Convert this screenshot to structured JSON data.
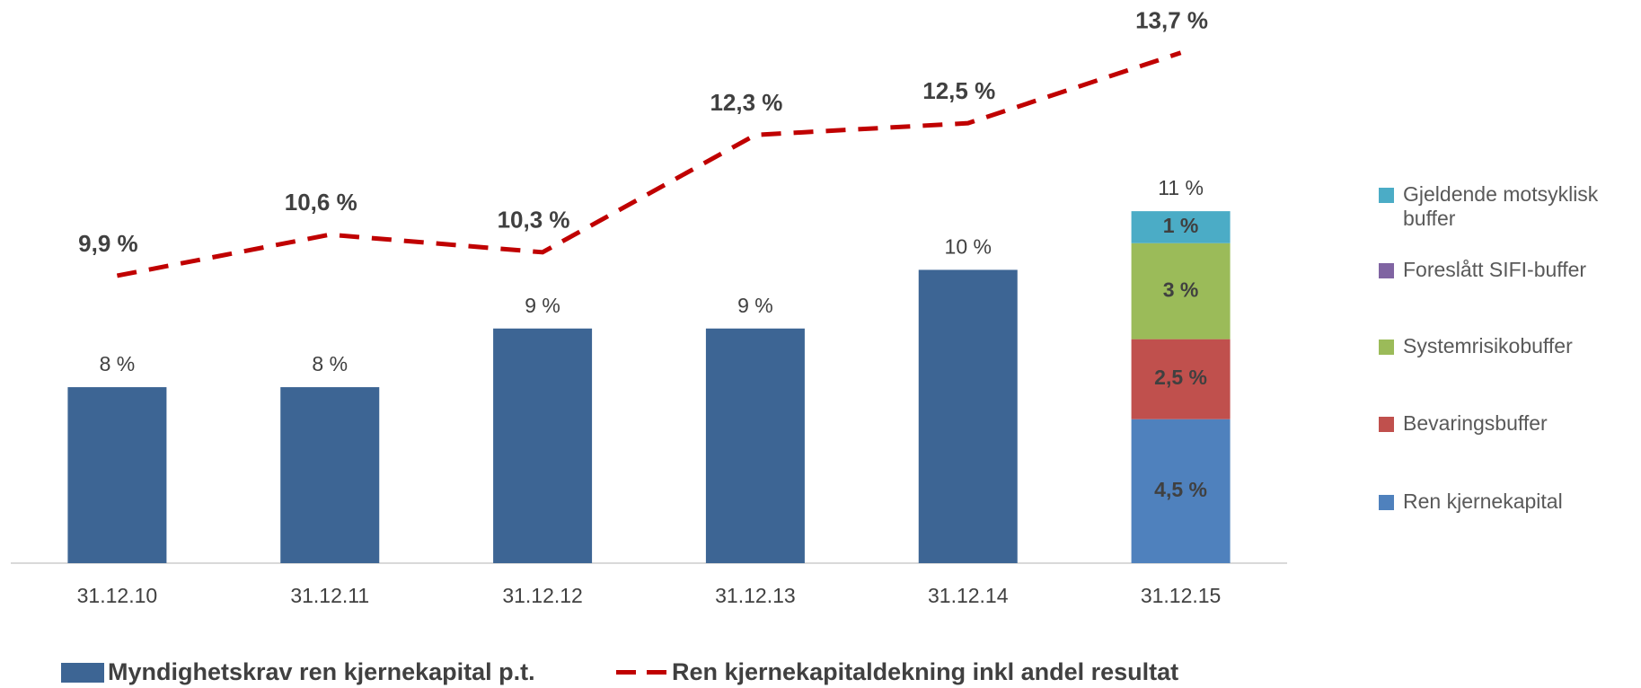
{
  "chart_data": {
    "type": "bar",
    "categories": [
      "31.12.10",
      "31.12.11",
      "31.12.12",
      "31.12.13",
      "31.12.14",
      "31.12.15"
    ],
    "ylim": [
      5,
      14.6
    ],
    "y2lim": [
      0,
      17.6
    ],
    "series": [
      {
        "name": "Myndighetskrav ren kjernekapital p.t.",
        "type": "bar",
        "color": "#3d6594",
        "values": [
          8,
          8,
          9,
          9,
          10,
          null
        ],
        "value_labels": [
          "8 %",
          "8 %",
          "9 %",
          "9 %",
          "10 %",
          null
        ]
      },
      {
        "name": "Ren kjernekapital",
        "type": "stacked",
        "axis": "y2",
        "color": "#4f81bd",
        "values": [
          null,
          null,
          null,
          null,
          null,
          4.5
        ],
        "value_labels": [
          null,
          null,
          null,
          null,
          null,
          "4,5 %"
        ]
      },
      {
        "name": "Bevaringsbuffer",
        "type": "stacked",
        "axis": "y2",
        "color": "#c0504d",
        "values": [
          null,
          null,
          null,
          null,
          null,
          2.5
        ],
        "value_labels": [
          null,
          null,
          null,
          null,
          null,
          "2,5 %"
        ]
      },
      {
        "name": "Systemrisikobuffer",
        "type": "stacked",
        "axis": "y2",
        "color": "#9bbb59",
        "values": [
          null,
          null,
          null,
          null,
          null,
          3
        ],
        "value_labels": [
          null,
          null,
          null,
          null,
          null,
          "3 %"
        ]
      },
      {
        "name": "Foreslått SIFI-buffer",
        "type": "stacked",
        "axis": "y2",
        "color": "#8064a2",
        "values": [
          null,
          null,
          null,
          null,
          null,
          0
        ]
      },
      {
        "name": "Gjeldende motsyklisk buffer",
        "type": "stacked",
        "axis": "y2",
        "color": "#4bacc6",
        "values": [
          null,
          null,
          null,
          null,
          null,
          1
        ],
        "value_labels": [
          null,
          null,
          null,
          null,
          null,
          "1 %"
        ]
      },
      {
        "name": "Ren kjernekapitaldekning inkl andel resultat",
        "type": "line",
        "color": "#c00000",
        "values": [
          9.9,
          10.6,
          10.3,
          12.3,
          12.5,
          13.7
        ],
        "value_labels": [
          "9,9 %",
          "10,6 %",
          "10,3 %",
          "12,3 %",
          "12,5 %",
          "13,7 %"
        ]
      }
    ],
    "total_label": "11 %"
  }
}
